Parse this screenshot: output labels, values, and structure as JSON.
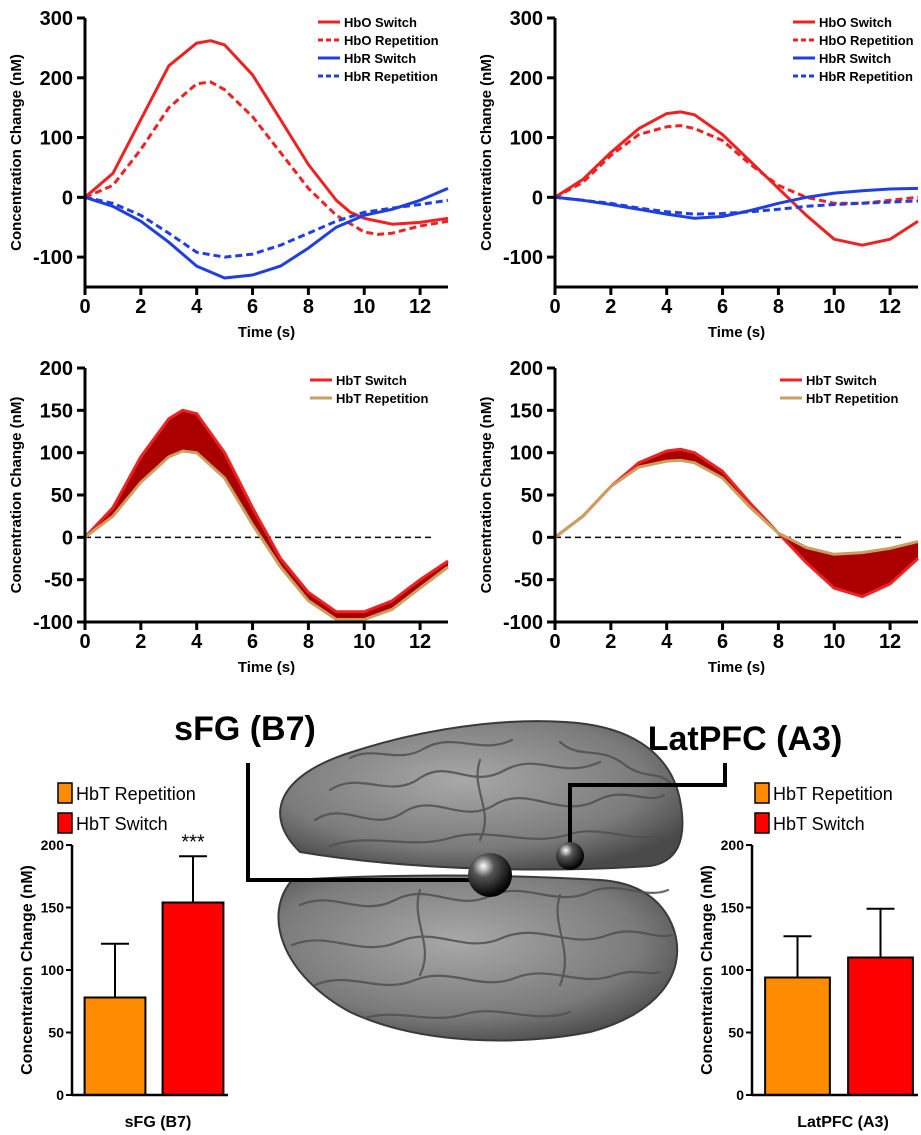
{
  "region_titles": {
    "left": "sFG (B7)",
    "right": "LatPFC (A3)"
  },
  "colors": {
    "hbo": "#ee2222",
    "hbr": "#1f3fe0",
    "hbt_switch": "#ee2222",
    "hbt_rep": "#c8a060",
    "fill_diff": "#aa0000",
    "bar_rep": "#ff8c00",
    "bar_switch": "#ff0000"
  },
  "chart_data": [
    {
      "id": "hb-sfg",
      "type": "line",
      "ylabel": "Concentration Change (nM)",
      "xlabel": "Time (s)",
      "xlim": [
        0,
        13
      ],
      "ylim": [
        -150,
        300
      ],
      "xticks": [
        0,
        2,
        4,
        6,
        8,
        10,
        12
      ],
      "yticks": [
        -100,
        0,
        100,
        200,
        300
      ],
      "legend_position": "top-right",
      "series": [
        {
          "name": "HbO Switch",
          "style": "solid",
          "color": "#ee2222",
          "x": [
            0,
            1,
            2,
            3,
            4,
            4.5,
            5,
            6,
            7,
            8,
            9,
            9.5,
            10,
            11,
            12,
            13
          ],
          "y": [
            0,
            40,
            130,
            220,
            258,
            262,
            255,
            205,
            130,
            55,
            -5,
            -25,
            -35,
            -45,
            -42,
            -35
          ]
        },
        {
          "name": "HbO Repetition",
          "style": "dashed",
          "color": "#ee2222",
          "x": [
            0,
            1,
            2,
            3,
            4,
            4.5,
            5,
            6,
            7,
            8,
            9,
            10,
            10.5,
            11,
            12,
            13
          ],
          "y": [
            0,
            20,
            80,
            150,
            190,
            193,
            180,
            135,
            75,
            15,
            -30,
            -58,
            -62,
            -60,
            -48,
            -40
          ]
        },
        {
          "name": "HbR Switch",
          "style": "solid",
          "color": "#1f3fe0",
          "x": [
            0,
            1,
            2,
            3,
            4,
            5,
            6,
            7,
            8,
            9,
            10,
            11,
            12,
            13
          ],
          "y": [
            0,
            -15,
            -40,
            -75,
            -115,
            -135,
            -130,
            -115,
            -85,
            -50,
            -30,
            -20,
            -5,
            15
          ]
        },
        {
          "name": "HbR Repetition",
          "style": "dashed",
          "color": "#1f3fe0",
          "x": [
            0,
            1,
            2,
            3,
            4,
            5,
            6,
            7,
            8,
            9,
            10,
            11,
            12,
            13
          ],
          "y": [
            0,
            -10,
            -30,
            -60,
            -92,
            -100,
            -95,
            -80,
            -60,
            -40,
            -25,
            -18,
            -12,
            -5
          ]
        }
      ]
    },
    {
      "id": "hb-latpfc",
      "type": "line",
      "ylabel": "Concentration Change (nM)",
      "xlabel": "Time (s)",
      "xlim": [
        0,
        13
      ],
      "ylim": [
        -150,
        300
      ],
      "xticks": [
        0,
        2,
        4,
        6,
        8,
        10,
        12
      ],
      "yticks": [
        -100,
        0,
        100,
        200,
        300
      ],
      "legend_position": "top-right",
      "series": [
        {
          "name": "HbO Switch",
          "style": "solid",
          "color": "#ee2222",
          "x": [
            0,
            1,
            2,
            3,
            4,
            4.5,
            5,
            6,
            7,
            8,
            9,
            10,
            11,
            12,
            13
          ],
          "y": [
            0,
            30,
            75,
            115,
            140,
            143,
            138,
            105,
            60,
            15,
            -30,
            -70,
            -80,
            -70,
            -40
          ]
        },
        {
          "name": "HbO Repetition",
          "style": "dashed",
          "color": "#ee2222",
          "x": [
            0,
            1,
            2,
            3,
            4,
            4.5,
            5,
            6,
            7,
            8,
            9,
            10,
            11,
            12,
            13
          ],
          "y": [
            0,
            25,
            70,
            105,
            118,
            120,
            115,
            95,
            55,
            20,
            0,
            -10,
            -10,
            -5,
            0
          ]
        },
        {
          "name": "HbR Switch",
          "style": "solid",
          "color": "#1f3fe0",
          "x": [
            0,
            1,
            2,
            3,
            4,
            5,
            6,
            7,
            8,
            9,
            10,
            11,
            12,
            13
          ],
          "y": [
            0,
            -5,
            -12,
            -20,
            -28,
            -35,
            -32,
            -22,
            -10,
            0,
            7,
            11,
            14,
            15
          ]
        },
        {
          "name": "HbR Repetition",
          "style": "dashed",
          "color": "#1f3fe0",
          "x": [
            0,
            1,
            2,
            3,
            4,
            5,
            6,
            7,
            8,
            9,
            10,
            11,
            12,
            13
          ],
          "y": [
            0,
            -5,
            -10,
            -18,
            -24,
            -28,
            -27,
            -24,
            -20,
            -15,
            -12,
            -10,
            -8,
            -6
          ]
        }
      ]
    },
    {
      "id": "hbt-sfg",
      "type": "area",
      "ylabel": "Concentration Change (nM)",
      "xlabel": "Time (s)",
      "xlim": [
        0,
        13
      ],
      "ylim": [
        -100,
        200
      ],
      "xticks": [
        0,
        2,
        4,
        6,
        8,
        10,
        12
      ],
      "yticks": [
        -100,
        -50,
        0,
        50,
        100,
        150,
        200
      ],
      "legend_position": "top-right",
      "zero_line": true,
      "fill_between": true,
      "series": [
        {
          "name": "HbT Switch",
          "style": "solid",
          "color": "#ee2222",
          "x": [
            0,
            1,
            2,
            3,
            3.5,
            4,
            5,
            6,
            7,
            8,
            9,
            10,
            11,
            12,
            13
          ],
          "y": [
            0,
            35,
            95,
            140,
            150,
            146,
            100,
            35,
            -25,
            -65,
            -88,
            -88,
            -75,
            -50,
            -28
          ]
        },
        {
          "name": "HbT Repetition",
          "style": "solid",
          "color": "#c8a060",
          "x": [
            0,
            1,
            2,
            3,
            3.5,
            4,
            5,
            6,
            7,
            8,
            9,
            10,
            11,
            12,
            13
          ],
          "y": [
            0,
            25,
            65,
            95,
            102,
            100,
            70,
            15,
            -35,
            -75,
            -97,
            -97,
            -85,
            -60,
            -35
          ]
        }
      ]
    },
    {
      "id": "hbt-latpfc",
      "type": "area",
      "ylabel": "Concentration Change (nM)",
      "xlabel": "Time (s)",
      "xlim": [
        0,
        13
      ],
      "ylim": [
        -100,
        200
      ],
      "xticks": [
        0,
        2,
        4,
        6,
        8,
        10,
        12
      ],
      "yticks": [
        -100,
        -50,
        0,
        50,
        100,
        150,
        200
      ],
      "legend_position": "top-right",
      "zero_line": true,
      "fill_between": true,
      "series": [
        {
          "name": "HbT Switch",
          "style": "solid",
          "color": "#ee2222",
          "x": [
            0,
            1,
            2,
            3,
            4,
            4.5,
            5,
            6,
            7,
            8,
            9,
            10,
            11,
            12,
            13
          ],
          "y": [
            0,
            25,
            60,
            88,
            102,
            104,
            100,
            78,
            40,
            5,
            -30,
            -60,
            -70,
            -55,
            -25
          ]
        },
        {
          "name": "HbT Repetition",
          "style": "solid",
          "color": "#c8a060",
          "x": [
            0,
            1,
            2,
            3,
            4,
            4.5,
            5,
            6,
            7,
            8,
            9,
            10,
            11,
            12,
            13
          ],
          "y": [
            0,
            25,
            60,
            83,
            90,
            91,
            88,
            70,
            35,
            5,
            -12,
            -20,
            -18,
            -13,
            -5
          ]
        }
      ]
    },
    {
      "id": "bars-sfg",
      "type": "bar",
      "ylabel": "Concentration Change (nM)",
      "xlabel": "sFG (B7)",
      "ylim": [
        0,
        200
      ],
      "yticks": [
        0,
        50,
        100,
        150,
        200
      ],
      "legend_position": "top-left",
      "annotation": "***",
      "series": [
        {
          "name": "HbT Repetition",
          "value": 78,
          "error": 43,
          "color": "#ff8c00"
        },
        {
          "name": "HbT Switch",
          "value": 154,
          "error": 37,
          "color": "#ff0000"
        }
      ]
    },
    {
      "id": "bars-latpfc",
      "type": "bar",
      "ylabel": "Concentration Change (nM)",
      "xlabel": "LatPFC (A3)",
      "ylim": [
        0,
        200
      ],
      "yticks": [
        0,
        50,
        100,
        150,
        200
      ],
      "legend_position": "top-left",
      "series": [
        {
          "name": "HbT Repetition",
          "value": 94,
          "error": 33,
          "color": "#ff8c00"
        },
        {
          "name": "HbT Switch",
          "value": 110,
          "error": 39,
          "color": "#ff0000"
        }
      ]
    }
  ]
}
